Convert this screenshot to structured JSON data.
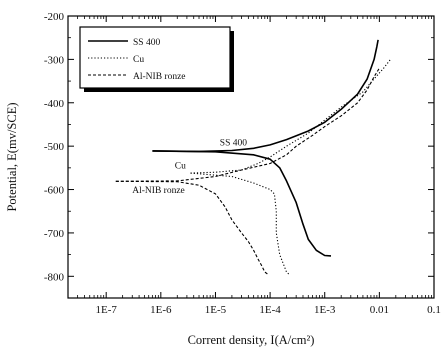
{
  "chart_data": {
    "type": "line",
    "xlabel": "Corrent density, I(A/cm²)",
    "ylabel": "Potential, E(mv/SCE)",
    "xscale": "log",
    "xlim": [
      2e-08,
      0.1
    ],
    "ylim": [
      -850,
      -200
    ],
    "x_tick_labels": [
      "1E-7",
      "1E-6",
      "1E-5",
      "1E-4",
      "1E-3",
      "0.01",
      "0.1"
    ],
    "x_tick_values": [
      1e-07,
      1e-06,
      1e-05,
      0.0001,
      0.001,
      0.01,
      0.1
    ],
    "y_tick_labels": [
      "-200",
      "-300",
      "-400",
      "-500",
      "-600",
      "-700",
      "-800"
    ],
    "y_tick_values": [
      -200,
      -300,
      -400,
      -500,
      -600,
      -700,
      -800
    ],
    "grid": false,
    "legend_position": "top-left",
    "series": [
      {
        "name": "SS 400",
        "style": "solid",
        "color": "#000000",
        "anodic": [
          [
            7e-07,
            -511
          ],
          [
            5e-06,
            -512
          ],
          [
            2e-05,
            -510
          ],
          [
            5e-05,
            -505
          ],
          [
            0.0001,
            -497
          ],
          [
            0.0002,
            -485
          ],
          [
            0.0005,
            -465
          ],
          [
            0.001,
            -445
          ],
          [
            0.002,
            -415
          ],
          [
            0.004,
            -380
          ],
          [
            0.006,
            -345
          ],
          [
            0.008,
            -300
          ],
          [
            0.009,
            -270
          ],
          [
            0.0095,
            -255
          ]
        ],
        "cathodic": [
          [
            7e-07,
            -511
          ],
          [
            1e-05,
            -513
          ],
          [
            5e-05,
            -520
          ],
          [
            0.0001,
            -530
          ],
          [
            0.00015,
            -550
          ],
          [
            0.0002,
            -580
          ],
          [
            0.0003,
            -630
          ],
          [
            0.0004,
            -680
          ],
          [
            0.0005,
            -715
          ],
          [
            0.0007,
            -740
          ],
          [
            0.001,
            -752
          ],
          [
            0.0013,
            -753
          ]
        ]
      },
      {
        "name": "Cu",
        "style": "dotted",
        "color": "#000000",
        "anodic": [
          [
            3.5e-06,
            -562
          ],
          [
            1e-05,
            -560
          ],
          [
            3e-05,
            -555
          ],
          [
            6e-05,
            -540
          ],
          [
            0.0001,
            -525
          ],
          [
            0.0002,
            -500
          ],
          [
            0.0005,
            -470
          ],
          [
            0.001,
            -440
          ],
          [
            0.002,
            -410
          ],
          [
            0.005,
            -375
          ],
          [
            0.008,
            -345
          ],
          [
            0.012,
            -320
          ],
          [
            0.016,
            -300
          ]
        ],
        "cathodic": [
          [
            3.5e-06,
            -562
          ],
          [
            2e-05,
            -570
          ],
          [
            5e-05,
            -585
          ],
          [
            0.0001,
            -600
          ],
          [
            0.00012,
            -610
          ],
          [
            0.00013,
            -650
          ],
          [
            0.00013,
            -700
          ],
          [
            0.00015,
            -750
          ],
          [
            0.0002,
            -790
          ],
          [
            0.00022,
            -795
          ]
        ]
      },
      {
        "name": "Al-NIB ronze",
        "style": "dashed",
        "color": "#000000",
        "anodic": [
          [
            1.5e-07,
            -581
          ],
          [
            2e-06,
            -580
          ],
          [
            1e-05,
            -570
          ],
          [
            3e-05,
            -555
          ],
          [
            0.0001,
            -540
          ],
          [
            0.0002,
            -520
          ],
          [
            0.0003,
            -500
          ],
          [
            0.0006,
            -475
          ],
          [
            0.001,
            -455
          ],
          [
            0.002,
            -430
          ],
          [
            0.004,
            -400
          ],
          [
            0.006,
            -370
          ],
          [
            0.008,
            -340
          ],
          [
            0.01,
            -320
          ]
        ],
        "cathodic": [
          [
            1.5e-07,
            -581
          ],
          [
            2e-06,
            -582
          ],
          [
            5e-06,
            -590
          ],
          [
            1e-05,
            -610
          ],
          [
            1.5e-05,
            -640
          ],
          [
            2e-05,
            -670
          ],
          [
            3e-05,
            -700
          ],
          [
            4e-05,
            -720
          ],
          [
            5e-05,
            -740
          ],
          [
            6e-05,
            -760
          ],
          [
            7e-05,
            -775
          ],
          [
            8e-05,
            -790
          ],
          [
            9e-05,
            -795
          ]
        ]
      }
    ],
    "annotations": [
      {
        "text": "SS 400",
        "x": 1.2e-05,
        "y": -498
      },
      {
        "text": "Cu",
        "x": 1.8e-06,
        "y": -552
      },
      {
        "text": "Al-NIB ronze",
        "x": 3e-07,
        "y": -608
      }
    ]
  }
}
